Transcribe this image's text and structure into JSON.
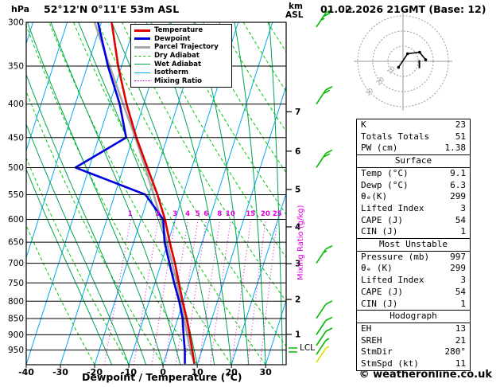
{
  "title": "52°12'N 0°11'E 53m ASL",
  "datetime": "01.02.2026 21GMT (Base: 12)",
  "units": {
    "pressure": "hPa",
    "altitude_km": "km",
    "altitude_ref": "ASL",
    "hodograph": "kt"
  },
  "axes": {
    "x_label": "Dewpoint / Temperature (°C)",
    "x_ticks": [
      -40,
      -30,
      -20,
      -10,
      0,
      10,
      20,
      30
    ],
    "pressure_ticks": [
      300,
      350,
      400,
      450,
      500,
      550,
      600,
      650,
      700,
      750,
      800,
      850,
      900,
      950
    ],
    "km_ticks": [
      1,
      2,
      3,
      4,
      5,
      6,
      7
    ],
    "mixing_ratio_label": "Mixing Ratio (g/kg)",
    "mixing_ratio_ticks": [
      1,
      2,
      3,
      4,
      5,
      6,
      8,
      10,
      15,
      20,
      25
    ],
    "lcl_label": "LCL"
  },
  "legend": {
    "items": [
      {
        "key": "temperature",
        "label": "Temperature"
      },
      {
        "key": "dewpoint",
        "label": "Dewpoint"
      },
      {
        "key": "parcel",
        "label": "Parcel Trajectory"
      },
      {
        "key": "dry_adiabat",
        "label": "Dry Adiabat"
      },
      {
        "key": "wet_adiabat",
        "label": "Wet Adiabat"
      },
      {
        "key": "isotherm",
        "label": "Isotherm"
      },
      {
        "key": "mixing_ratio",
        "label": "Mixing Ratio"
      }
    ]
  },
  "colors": {
    "temperature": "#e00000",
    "dewpoint": "#0000dd",
    "parcel": "#a8a8a8",
    "dry_adiabat": "#00c800",
    "wet_adiabat": "#00a550",
    "isotherm": "#00aaee",
    "mixing_ratio": "#dd00dd",
    "grid": "#000000",
    "barb_green": "#00bb00",
    "barb_yellow": "#dddd00",
    "hodo_gray": "#999999"
  },
  "chart_data": {
    "type": "skewt_log_p_sounding",
    "pressure_range_hpa": [
      300,
      1000
    ],
    "temp_axis_range_c": [
      -40,
      35
    ],
    "pressure_hpa": [
      997,
      950,
      900,
      850,
      800,
      750,
      700,
      650,
      600,
      550,
      500,
      450,
      400,
      350,
      300
    ],
    "temperature_c": [
      9.1,
      7.2,
      5.0,
      2.6,
      -0.2,
      -3.0,
      -6.0,
      -9.5,
      -13.0,
      -17.5,
      -23.0,
      -29.0,
      -35.0,
      -41.0,
      -47.0
    ],
    "dewpoint_c": [
      6.3,
      5.0,
      3.2,
      1.4,
      -1.2,
      -4.4,
      -7.6,
      -11.0,
      -13.5,
      -21.0,
      -44.0,
      -32.0,
      -37.0,
      -44.0,
      -51.0
    ],
    "parcel_c": [
      9.1,
      6.6,
      4.3,
      1.9,
      -0.7,
      -3.6,
      -6.8,
      -10.3,
      -14.2,
      -18.6,
      -23.6,
      -29.3,
      -36.0,
      -43.5,
      -52.0
    ],
    "wind_barbs": [
      {
        "pressure_hpa": 305,
        "speed_kt": 25,
        "color": "green"
      },
      {
        "pressure_hpa": 400,
        "speed_kt": 20,
        "color": "green"
      },
      {
        "pressure_hpa": 500,
        "speed_kt": 20,
        "color": "green"
      },
      {
        "pressure_hpa": 700,
        "speed_kt": 15,
        "color": "green"
      },
      {
        "pressure_hpa": 850,
        "speed_kt": 10,
        "color": "green"
      },
      {
        "pressure_hpa": 900,
        "speed_kt": 10,
        "color": "green"
      },
      {
        "pressure_hpa": 935,
        "speed_kt": 10,
        "color": "green"
      },
      {
        "pressure_hpa": 965,
        "speed_kt": 5,
        "color": "green"
      },
      {
        "pressure_hpa": 992,
        "speed_kt": 5,
        "color": "yellow"
      }
    ],
    "hodograph": {
      "rings_kt": [
        10,
        20,
        30
      ],
      "trace_kt": [
        [
          -3,
          -4
        ],
        [
          3,
          5
        ],
        [
          11,
          6
        ],
        [
          15,
          1
        ]
      ],
      "storm_motion": {
        "dir_deg": 280,
        "speed_kt": 11
      }
    }
  },
  "stats": {
    "top": [
      {
        "label": "K",
        "value": "23"
      },
      {
        "label": "Totals Totals",
        "value": "51"
      },
      {
        "label": "PW (cm)",
        "value": "1.38"
      }
    ],
    "sections": [
      {
        "title": "Surface",
        "rows": [
          {
            "label": "Temp (°C)",
            "value": "9.1"
          },
          {
            "label": "Dewp (°C)",
            "value": "6.3"
          },
          {
            "label": "θₑ(K)",
            "value": "299"
          },
          {
            "label": "Lifted Index",
            "value": "3"
          },
          {
            "label": "CAPE (J)",
            "value": "54"
          },
          {
            "label": "CIN (J)",
            "value": "1"
          }
        ]
      },
      {
        "title": "Most Unstable",
        "rows": [
          {
            "label": "Pressure (mb)",
            "value": "997"
          },
          {
            "label": "θₑ (K)",
            "value": "299"
          },
          {
            "label": "Lifted Index",
            "value": "3"
          },
          {
            "label": "CAPE (J)",
            "value": "54"
          },
          {
            "label": "CIN (J)",
            "value": "1"
          }
        ]
      },
      {
        "title": "Hodograph",
        "rows": [
          {
            "label": "EH",
            "value": "13"
          },
          {
            "label": "SREH",
            "value": "21"
          },
          {
            "label": "StmDir",
            "value": "280°"
          },
          {
            "label": "StmSpd (kt)",
            "value": "11"
          }
        ]
      }
    ]
  },
  "footer": "© weatheronline.co.uk"
}
